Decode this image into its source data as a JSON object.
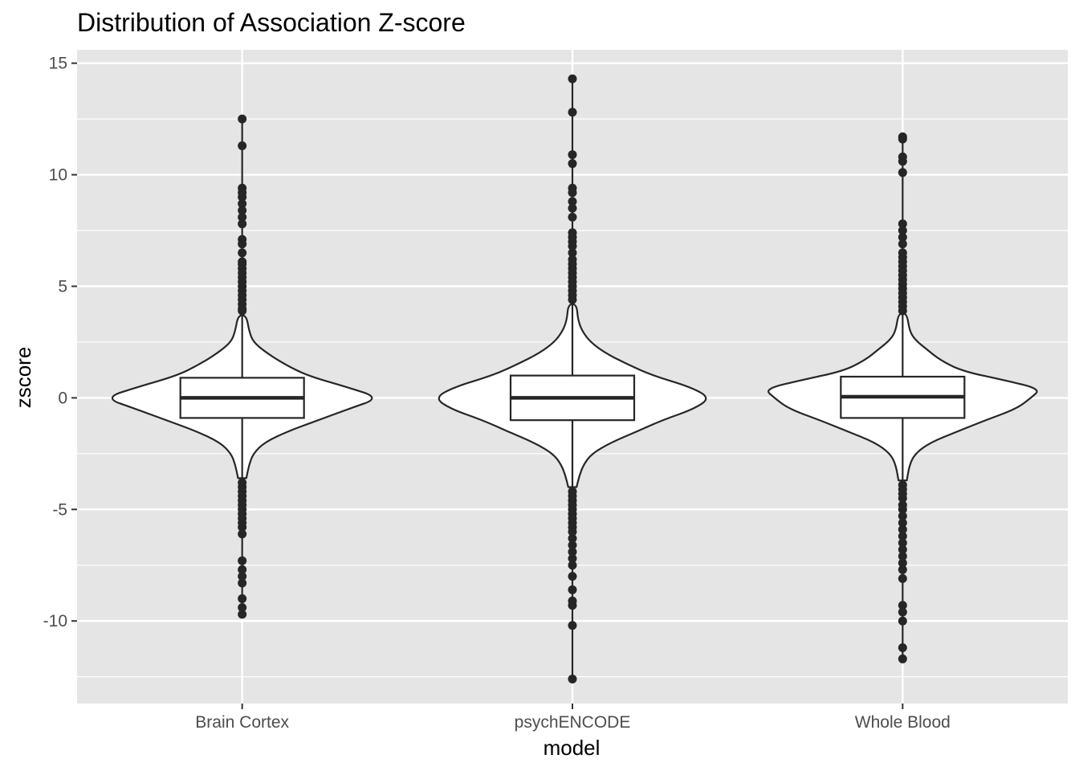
{
  "chart_data": {
    "type": "violin",
    "title": "Distribution of Association Z-score",
    "xlabel": "model",
    "ylabel": "zscore",
    "ylim": [
      -13.7,
      15.6
    ],
    "yticks": [
      -10,
      -5,
      0,
      5,
      10,
      15
    ],
    "ytick_labels": [
      "-10",
      "-5",
      "0",
      "5",
      "10",
      "15"
    ],
    "grid": true,
    "categories": [
      "Brain Cortex",
      "psychENCODE",
      "Whole Blood"
    ],
    "series": [
      {
        "category": "Brain Cortex",
        "box": {
          "q1": -0.9,
          "median": 0.0,
          "q3": 0.9
        },
        "whisker_low": -3.6,
        "whisker_high": 3.7,
        "outliers": [
          12.5,
          11.3,
          9.4,
          9.2,
          9.0,
          8.7,
          8.4,
          8.1,
          7.8,
          7.1,
          6.9,
          6.5,
          6.1,
          6.0,
          5.8,
          5.6,
          5.4,
          5.2,
          5.0,
          4.8,
          4.6,
          4.4,
          4.2,
          4.0,
          3.9,
          -3.8,
          -4.0,
          -4.2,
          -4.4,
          -4.6,
          -4.8,
          -5.0,
          -5.2,
          -5.4,
          -5.6,
          -5.8,
          -6.1,
          -7.3,
          -7.7,
          -8.0,
          -8.3,
          -9.0,
          -9.4,
          -9.7
        ],
        "density_width": [
          [
            -3.6,
            0.03
          ],
          [
            -3.0,
            0.05
          ],
          [
            -2.5,
            0.08
          ],
          [
            -2.0,
            0.16
          ],
          [
            -1.5,
            0.33
          ],
          [
            -1.0,
            0.55
          ],
          [
            -0.5,
            0.77
          ],
          [
            0.0,
            1.0
          ],
          [
            0.5,
            0.75
          ],
          [
            1.0,
            0.47
          ],
          [
            1.5,
            0.31
          ],
          [
            2.0,
            0.18
          ],
          [
            2.5,
            0.08
          ],
          [
            3.0,
            0.05
          ],
          [
            3.7,
            0.03
          ]
        ]
      },
      {
        "category": "psychENCODE",
        "box": {
          "q1": -1.0,
          "median": 0.0,
          "q3": 1.0
        },
        "whisker_low": -4.0,
        "whisker_high": 4.2,
        "outliers": [
          14.3,
          12.8,
          10.9,
          10.5,
          9.4,
          9.2,
          8.8,
          8.5,
          8.1,
          7.4,
          7.2,
          7.0,
          6.8,
          6.5,
          6.2,
          6.0,
          5.8,
          5.6,
          5.4,
          5.2,
          5.0,
          4.8,
          4.6,
          4.4,
          -4.2,
          -4.4,
          -4.6,
          -4.8,
          -5.0,
          -5.2,
          -5.4,
          -5.6,
          -5.8,
          -6.0,
          -6.3,
          -6.6,
          -6.9,
          -7.2,
          -7.5,
          -8.0,
          -8.6,
          -9.1,
          -9.3,
          -10.2,
          -12.6
        ],
        "density_width": [
          [
            -4.0,
            0.03
          ],
          [
            -3.5,
            0.05
          ],
          [
            -3.0,
            0.08
          ],
          [
            -2.5,
            0.14
          ],
          [
            -2.0,
            0.28
          ],
          [
            -1.5,
            0.47
          ],
          [
            -1.0,
            0.65
          ],
          [
            -0.5,
            0.88
          ],
          [
            0.0,
            1.0
          ],
          [
            0.5,
            0.85
          ],
          [
            1.0,
            0.58
          ],
          [
            1.5,
            0.4
          ],
          [
            2.0,
            0.24
          ],
          [
            2.5,
            0.13
          ],
          [
            3.0,
            0.07
          ],
          [
            3.5,
            0.04
          ],
          [
            4.2,
            0.03
          ]
        ]
      },
      {
        "category": "Whole Blood",
        "box": {
          "q1": -0.9,
          "median": 0.05,
          "q3": 0.95
        },
        "whisker_low": -3.7,
        "whisker_high": 3.8,
        "outliers": [
          11.7,
          11.6,
          10.8,
          10.6,
          10.1,
          7.8,
          7.5,
          7.2,
          6.9,
          6.5,
          6.3,
          6.1,
          5.9,
          5.7,
          5.5,
          5.3,
          5.1,
          4.9,
          4.7,
          4.5,
          4.3,
          4.1,
          3.9,
          -3.9,
          -4.1,
          -4.3,
          -4.5,
          -4.8,
          -5.0,
          -5.3,
          -5.6,
          -5.9,
          -6.2,
          -6.5,
          -6.8,
          -7.1,
          -7.4,
          -7.7,
          -8.1,
          -9.3,
          -9.6,
          -10.0,
          -11.2,
          -11.7
        ],
        "density_width": [
          [
            -3.7,
            0.03
          ],
          [
            -3.0,
            0.05
          ],
          [
            -2.5,
            0.09
          ],
          [
            -2.0,
            0.2
          ],
          [
            -1.5,
            0.4
          ],
          [
            -1.0,
            0.6
          ],
          [
            -0.5,
            0.82
          ],
          [
            0.0,
            0.93
          ],
          [
            0.4,
            1.0
          ],
          [
            0.8,
            0.73
          ],
          [
            1.2,
            0.43
          ],
          [
            1.7,
            0.27
          ],
          [
            2.2,
            0.17
          ],
          [
            2.6,
            0.09
          ],
          [
            3.0,
            0.05
          ],
          [
            3.8,
            0.03
          ]
        ]
      }
    ],
    "colors": {
      "panel": "#e5e5e5",
      "grid": "#ffffff",
      "violin_fill": "#ffffff",
      "outline": "#262626",
      "tick_label": "#4d4d4d",
      "tick_mark": "#333333"
    }
  }
}
